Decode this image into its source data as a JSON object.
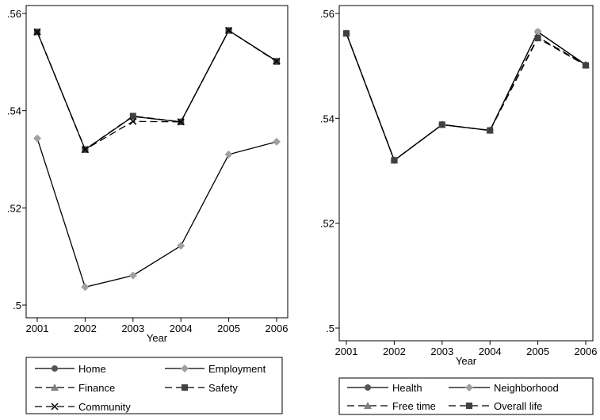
{
  "chart_data": [
    {
      "type": "line",
      "xlabel": "Year",
      "ylabel": "",
      "x": [
        2001,
        2002,
        2003,
        2004,
        2005,
        2006
      ],
      "xticks": [
        "2001",
        "2002",
        "2003",
        "2004",
        "2005",
        "2006"
      ],
      "ylim": [
        0.5,
        0.56
      ],
      "yticks": [
        ".5",
        ".52",
        ".54",
        ".56"
      ],
      "grid": false,
      "legend_position": "bottom",
      "series": [
        {
          "name": "Home",
          "values": [
            0.5562,
            0.532,
            0.5388,
            0.5377,
            0.5565,
            0.5502
          ],
          "color": "#000000",
          "dash": "solid",
          "marker": "circle",
          "marker_color": "#555555"
        },
        {
          "name": "Employment",
          "values": [
            0.5343,
            0.5037,
            0.5061,
            0.5122,
            0.531,
            0.5336
          ],
          "color": "#000000",
          "dash": "solid",
          "marker": "diamond",
          "marker_color": "#a0a0a0"
        },
        {
          "name": "Finance",
          "values": [
            0.5562,
            0.532,
            0.5388,
            0.5377,
            0.5565,
            0.5502
          ],
          "color": "#000000",
          "dash": "dashed",
          "marker": "triangle",
          "marker_color": "#808080"
        },
        {
          "name": "Safety",
          "values": [
            0.5562,
            0.532,
            0.5389,
            0.5377,
            0.5565,
            0.5501
          ],
          "color": "#000000",
          "dash": "dashed",
          "marker": "square",
          "marker_color": "#404040"
        },
        {
          "name": "Community",
          "values": [
            0.5562,
            0.532,
            0.5378,
            0.5377,
            0.5565,
            0.5502
          ],
          "color": "#000000",
          "dash": "dashed",
          "marker": "x",
          "marker_color": "#000000"
        }
      ]
    },
    {
      "type": "line",
      "xlabel": "Year",
      "ylabel": "",
      "x": [
        2001,
        2002,
        2003,
        2004,
        2005,
        2006
      ],
      "xticks": [
        "2001",
        "2002",
        "2003",
        "2004",
        "2005",
        "2006"
      ],
      "ylim": [
        0.5,
        0.56
      ],
      "yticks": [
        ".5",
        ".52",
        ".54",
        ".56"
      ],
      "grid": false,
      "legend_position": "bottom",
      "series": [
        {
          "name": "Health",
          "values": [
            0.5562,
            0.532,
            0.5388,
            0.5377,
            0.5565,
            0.5502
          ],
          "color": "#000000",
          "dash": "solid",
          "marker": "circle",
          "marker_color": "#555555"
        },
        {
          "name": "Neighborhood",
          "values": [
            0.5562,
            0.532,
            0.5388,
            0.5377,
            0.5565,
            0.5502
          ],
          "color": "#000000",
          "dash": "solid",
          "marker": "diamond",
          "marker_color": "#a0a0a0"
        },
        {
          "name": "Free time",
          "values": [
            0.5562,
            0.532,
            0.5388,
            0.5377,
            0.5555,
            0.5502
          ],
          "color": "#000000",
          "dash": "dashed",
          "marker": "triangle",
          "marker_color": "#808080"
        },
        {
          "name": "Overall life",
          "values": [
            0.5562,
            0.532,
            0.5388,
            0.5377,
            0.5553,
            0.5501
          ],
          "color": "#000000",
          "dash": "dashed",
          "marker": "square",
          "marker_color": "#404040"
        }
      ]
    }
  ]
}
